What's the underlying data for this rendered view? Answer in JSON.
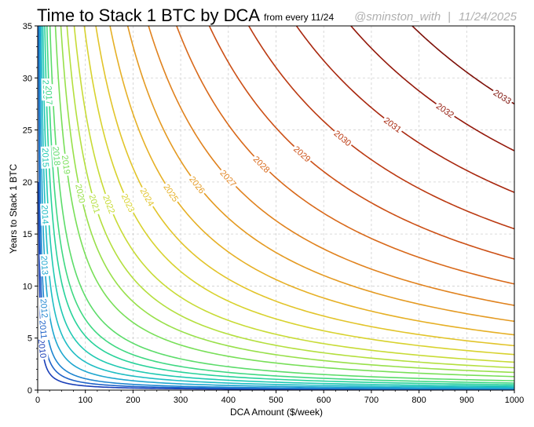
{
  "chart_data": {
    "type": "line",
    "title": "Time to Stack 1 BTC by DCA",
    "subtitle": "from every 11/24",
    "credit_handle": "@sminston_with",
    "credit_separator": "|",
    "credit_date": "11/24/2025",
    "xlabel": "DCA Amount ($/week)",
    "ylabel": "Years to Stack 1 BTC",
    "xlim": [
      0,
      1000
    ],
    "ylim": [
      0,
      35
    ],
    "xticks": [
      0,
      100,
      200,
      300,
      400,
      500,
      600,
      700,
      800,
      900,
      1000
    ],
    "yticks": [
      0,
      5,
      10,
      15,
      20,
      25,
      30,
      35
    ],
    "grid": true,
    "series_note": "Each curve: years needed (y) vs weekly DCA amount (x) when starting every 11/24 of the labeled year; y = k / x",
    "series": [
      {
        "name": "2010",
        "k": 40,
        "color": "#1a3fb8",
        "label_x": 10
      },
      {
        "name": "2011",
        "k": 70,
        "color": "#1f62c8",
        "label_x": 12
      },
      {
        "name": "2012",
        "k": 110,
        "color": "#1f86d0",
        "label_x": 14
      },
      {
        "name": "2013",
        "k": 180,
        "color": "#1ea6cf",
        "label_x": 15
      },
      {
        "name": "2014",
        "k": 270,
        "color": "#1fbdc4",
        "label_x": 16
      },
      {
        "name": "2015",
        "k": 380,
        "color": "#20c9b2",
        "label_x": 17
      },
      {
        "name": "2016",
        "k": 520,
        "color": "#28d29a",
        "label_x": 18
      },
      {
        "name": "2017",
        "k": 680,
        "color": "#3fd882",
        "label_x": 24
      },
      {
        "name": "2018",
        "k": 900,
        "color": "#5cdc6a",
        "label_x": 40
      },
      {
        "name": "2019",
        "k": 1300,
        "color": "#78df58",
        "label_x": 60
      },
      {
        "name": "2020",
        "k": 1700,
        "color": "#98e04a",
        "label_x": 90
      },
      {
        "name": "2021",
        "k": 2150,
        "color": "#b4df3e",
        "label_x": 120
      },
      {
        "name": "2022",
        "k": 2680,
        "color": "#c8db36",
        "label_x": 150
      },
      {
        "name": "2023",
        "k": 3420,
        "color": "#d8d22e",
        "label_x": 190
      },
      {
        "name": "2024",
        "k": 4270,
        "color": "#e2c42a",
        "label_x": 230
      },
      {
        "name": "2025",
        "k": 5310,
        "color": "#e6b026",
        "label_x": 280
      },
      {
        "name": "2026",
        "k": 6610,
        "color": "#e49a22",
        "label_x": 335
      },
      {
        "name": "2027",
        "k": 8140,
        "color": "#e0821e",
        "label_x": 400
      },
      {
        "name": "2028",
        "k": 10200,
        "color": "#d8691a",
        "label_x": 470
      },
      {
        "name": "2029",
        "k": 12600,
        "color": "#cc5016",
        "label_x": 555
      },
      {
        "name": "2030",
        "k": 15500,
        "color": "#bb3a12",
        "label_x": 640
      },
      {
        "name": "2031",
        "k": 19000,
        "color": "#a8270e",
        "label_x": 745
      },
      {
        "name": "2032",
        "k": 23000,
        "color": "#94190b",
        "label_x": 855
      },
      {
        "name": "2033",
        "k": 27500,
        "color": "#7d1008",
        "label_x": 975
      }
    ]
  }
}
